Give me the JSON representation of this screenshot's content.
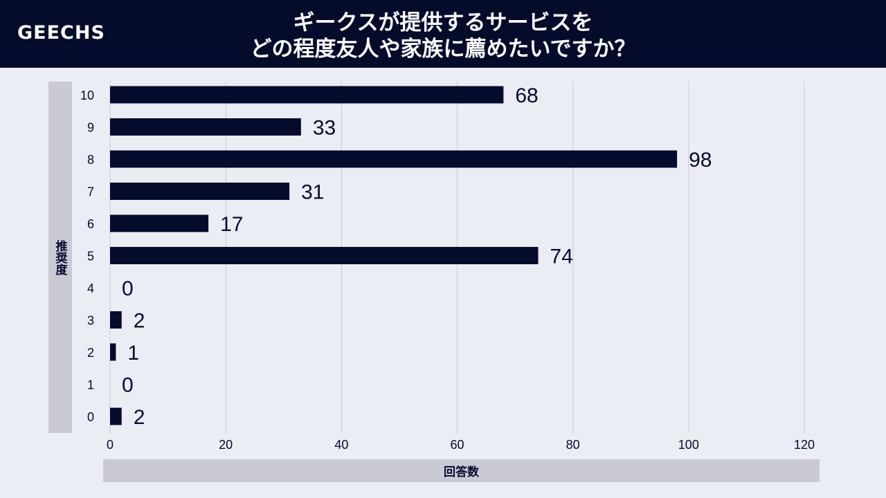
{
  "header": {
    "brand": "GEECHS",
    "title_line1": "ギークスが提供するサービスを",
    "title_line2": "どの程度友人や家族に薦めたいですか？"
  },
  "colors": {
    "bar": "#050b2b",
    "grid": "#c8cad3",
    "header_bg": "#050b2b",
    "label_box": "#c9cad4",
    "background": "#eaedf3"
  },
  "chart_data": {
    "type": "bar",
    "orientation": "horizontal",
    "categories": [
      "10",
      "9",
      "8",
      "7",
      "6",
      "5",
      "4",
      "3",
      "2",
      "1",
      "0"
    ],
    "values": [
      68,
      33,
      98,
      31,
      17,
      74,
      0,
      2,
      1,
      0,
      2
    ],
    "xlabel": "回答数",
    "ylabel": "推奨度",
    "xlim": [
      0,
      120
    ],
    "xticks": [
      0,
      20,
      40,
      60,
      80,
      100,
      120
    ],
    "grid": true
  }
}
